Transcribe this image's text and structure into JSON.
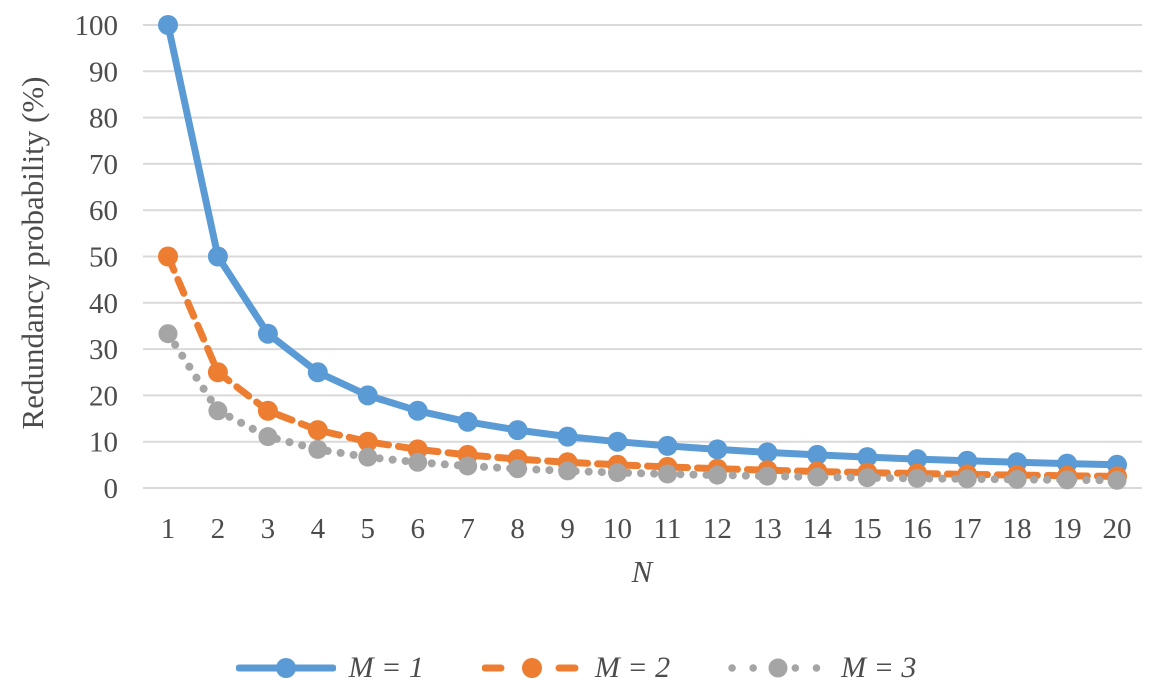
{
  "chart_data": {
    "type": "line",
    "title": "",
    "xlabel": "N",
    "ylabel": "Redundancy probability (%)",
    "x": [
      1,
      2,
      3,
      4,
      5,
      6,
      7,
      8,
      9,
      10,
      11,
      12,
      13,
      14,
      15,
      16,
      17,
      18,
      19,
      20
    ],
    "xlim": [
      1,
      20
    ],
    "ylim": [
      0,
      100
    ],
    "yticks": [
      0,
      10,
      20,
      30,
      40,
      50,
      60,
      70,
      80,
      90,
      100
    ],
    "grid": "horizontal",
    "legend_position": "bottom-center",
    "series": [
      {
        "name": "M = 1",
        "color": "#5B9BD5",
        "line_style": "solid",
        "marker": "circle",
        "values": [
          100,
          50,
          33.33,
          25,
          20,
          16.67,
          14.29,
          12.5,
          11.11,
          10,
          9.09,
          8.33,
          7.69,
          7.14,
          6.67,
          6.25,
          5.88,
          5.56,
          5.26,
          5
        ]
      },
      {
        "name": "M = 2",
        "color": "#ED7D31",
        "line_style": "dashed",
        "marker": "circle",
        "values": [
          50,
          25,
          16.67,
          12.5,
          10,
          8.33,
          7.14,
          6.25,
          5.56,
          5,
          4.55,
          4.17,
          3.85,
          3.57,
          3.33,
          3.13,
          2.94,
          2.78,
          2.63,
          2.5
        ]
      },
      {
        "name": "M = 3",
        "color": "#A5A5A5",
        "line_style": "dotted",
        "marker": "circle",
        "values": [
          33.33,
          16.67,
          11.11,
          8.33,
          6.67,
          5.56,
          4.76,
          4.17,
          3.7,
          3.33,
          3.03,
          2.78,
          2.56,
          2.38,
          2.22,
          2.08,
          1.96,
          1.85,
          1.75,
          1.67
        ]
      }
    ],
    "colors": {
      "gridline": "#D9D9D9",
      "text": "#4C4C4C"
    }
  }
}
